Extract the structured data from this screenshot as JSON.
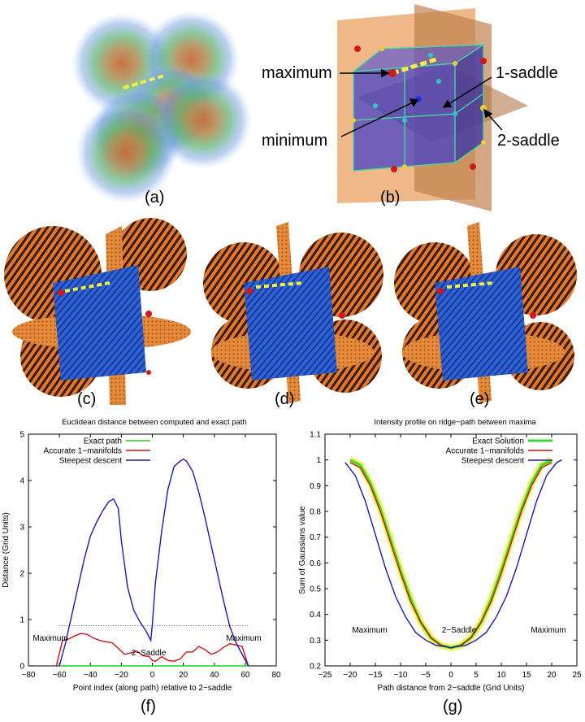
{
  "figure": {
    "panel_labels": [
      "(a)",
      "(b)",
      "(c)",
      "(d)",
      "(e)",
      "(f)",
      "(g)"
    ],
    "cube_annotations": {
      "maximum": "maximum",
      "saddle1": "1-saddle",
      "minimum": "minimum",
      "saddle2": "2-saddle"
    },
    "colors": {
      "orange": "#e8893a",
      "blue": "#2a5fd8",
      "cube_fill": "#3a3ad0",
      "path_yellow": "#f0f040",
      "max_red": "#d01818",
      "saddle_yellow": "#e8d030",
      "saddle_cyan": "#30c8c8"
    }
  },
  "chart_data": [
    {
      "type": "line",
      "title": "Euclidean distance between computed and exact path",
      "xlabel": "Point index (along path) relative to 2−saddle",
      "ylabel": "Distance (Grid Units)",
      "xlim": [
        -80,
        80
      ],
      "ylim": [
        0,
        5
      ],
      "xticks": [
        "−80",
        "−60",
        "−40",
        "−20",
        "0",
        "20",
        "40",
        "60",
        "80"
      ],
      "yticks": [
        "0",
        "1",
        "2",
        "3",
        "4",
        "5"
      ],
      "grid": false,
      "legend_position": "top-left",
      "annotations": [
        "Maximum",
        "2−Saddle",
        "Maximum"
      ],
      "reference_line_y": 0.87,
      "series": [
        {
          "name": "Exact path",
          "color": "#22cc22",
          "x": [
            -60,
            62
          ],
          "y": [
            0,
            0
          ]
        },
        {
          "name": "Accurate 1−manifolds",
          "color": "#cc1111",
          "x": [
            -62,
            -58,
            -54,
            -50,
            -46,
            -42,
            -38,
            -34,
            -30,
            -26,
            -22,
            -18,
            -14,
            -10,
            -6,
            -2,
            0,
            2,
            6,
            10,
            14,
            18,
            22,
            26,
            30,
            34,
            38,
            42,
            46,
            50,
            54,
            58,
            62
          ],
          "y": [
            0,
            0.55,
            0.58,
            0.65,
            0.7,
            0.68,
            0.6,
            0.55,
            0.52,
            0.5,
            0.38,
            0.25,
            0.28,
            0.32,
            0.22,
            0.2,
            0.12,
            0.1,
            0.2,
            0.12,
            0.1,
            0.15,
            0.3,
            0.3,
            0.42,
            0.35,
            0.25,
            0.3,
            0.4,
            0.48,
            0.45,
            0.42,
            0
          ]
        },
        {
          "name": "Steepest descent",
          "color": "#1a1aaa",
          "x": [
            -60,
            -56,
            -52,
            -48,
            -44,
            -40,
            -36,
            -32,
            -28,
            -25,
            -22,
            -20,
            -16,
            -12,
            -8,
            -4,
            -1,
            0,
            2,
            6,
            10,
            14,
            18,
            20,
            22,
            26,
            30,
            34,
            38,
            42,
            46,
            50,
            54,
            58,
            62
          ],
          "y": [
            0,
            0.5,
            1.1,
            1.7,
            2.3,
            2.8,
            3.1,
            3.35,
            3.55,
            3.6,
            3.4,
            2.7,
            1.7,
            1.2,
            0.95,
            0.75,
            0.55,
            0.9,
            1.8,
            2.9,
            3.8,
            4.3,
            4.42,
            4.46,
            4.42,
            4.2,
            3.75,
            3.2,
            2.6,
            2.0,
            1.4,
            0.85,
            0.5,
            0.25,
            0
          ]
        }
      ]
    },
    {
      "type": "line",
      "title": "Intensity profile on ridge−path between maxima",
      "xlabel": "Path distance from 2−saddle (Grid Units)",
      "ylabel": "Sum of Gaussians value",
      "xlim": [
        -25,
        25
      ],
      "ylim": [
        0.2,
        1.1
      ],
      "xticks": [
        "−25",
        "−20",
        "−15",
        "−10",
        "−5",
        "0",
        "5",
        "10",
        "15",
        "20",
        "25"
      ],
      "yticks": [
        "0.2",
        "0.3",
        "0.4",
        "0.5",
        "0.6",
        "0.7",
        "0.8",
        "0.9",
        "1",
        "1.1"
      ],
      "grid": false,
      "legend_position": "top-right",
      "annotations": [
        "Maximum",
        "2−Saddle",
        "Maximum"
      ],
      "series": [
        {
          "name": "Exact Solution",
          "color": "#33dd33",
          "x": [
            -20,
            -18,
            -16,
            -14,
            -12,
            -10,
            -8,
            -6,
            -4,
            -2,
            0,
            2,
            4,
            6,
            8,
            10,
            12,
            14,
            16,
            18,
            20
          ],
          "y": [
            1.0,
            0.98,
            0.91,
            0.81,
            0.69,
            0.57,
            0.46,
            0.37,
            0.31,
            0.28,
            0.27,
            0.28,
            0.31,
            0.37,
            0.46,
            0.57,
            0.69,
            0.81,
            0.91,
            0.98,
            1.0
          ]
        },
        {
          "name": "Accurate 1−manifolds",
          "color": "#cc1111",
          "x": [
            -20,
            -18,
            -16,
            -14,
            -12,
            -10,
            -8,
            -6,
            -4,
            -2,
            0,
            2,
            4,
            6,
            8,
            10,
            12,
            14,
            16,
            18,
            20
          ],
          "y": [
            0.99,
            0.97,
            0.9,
            0.8,
            0.68,
            0.56,
            0.45,
            0.37,
            0.31,
            0.28,
            0.27,
            0.28,
            0.31,
            0.37,
            0.45,
            0.56,
            0.68,
            0.8,
            0.9,
            0.97,
            0.99
          ]
        },
        {
          "name": "Steepest descent",
          "color": "#1a1aaa",
          "x": [
            -21,
            -19,
            -17,
            -15,
            -13,
            -11,
            -9,
            -7,
            -5,
            -3,
            -1,
            0,
            1,
            3,
            5,
            7,
            9,
            11,
            13,
            15,
            17,
            19,
            21,
            22
          ],
          "y": [
            0.99,
            0.94,
            0.84,
            0.71,
            0.58,
            0.47,
            0.39,
            0.33,
            0.3,
            0.28,
            0.275,
            0.27,
            0.275,
            0.28,
            0.3,
            0.33,
            0.39,
            0.47,
            0.58,
            0.71,
            0.84,
            0.94,
            0.99,
            1.0
          ]
        }
      ]
    }
  ]
}
